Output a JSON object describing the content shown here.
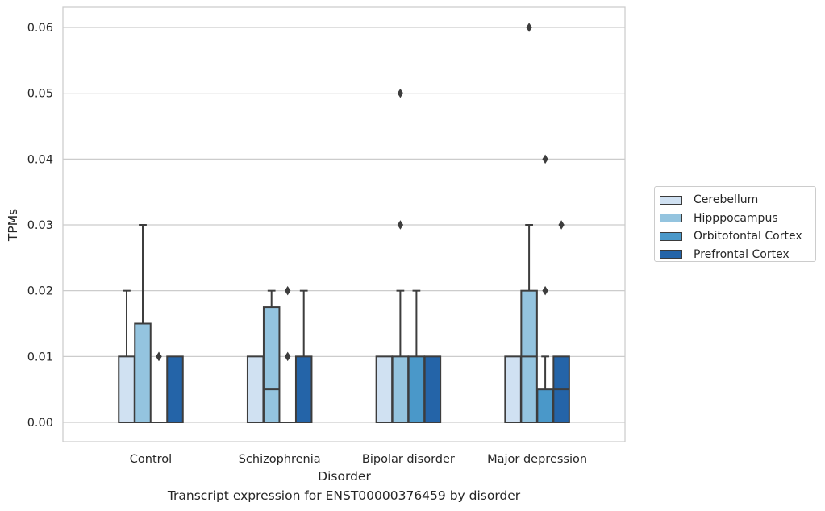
{
  "chart_data": {
    "type": "boxplot",
    "categories": [
      "Control",
      "Schizophrenia",
      "Bipolar disorder",
      "Major depression"
    ],
    "xlabel": "Disorder",
    "ylabel": "TPMs",
    "caption": "Transcript expression for ENST00000376459 by disorder",
    "ylim": [
      -0.003,
      0.063
    ],
    "yticks": [
      0.0,
      0.01,
      0.02,
      0.03,
      0.04,
      0.05,
      0.06
    ],
    "ytick_labels": [
      "0.00",
      "0.01",
      "0.02",
      "0.03",
      "0.04",
      "0.05",
      "0.06"
    ],
    "grid": "horizontal",
    "legend_position": "outside-right",
    "series": [
      {
        "name": "Cerebellum",
        "color": "#d0e1f2",
        "boxes": [
          {
            "q1": 0.0,
            "median": 0.0,
            "q3": 0.01,
            "whisker_low": 0.0,
            "whisker_high": 0.02,
            "outliers": []
          },
          {
            "q1": 0.0,
            "median": 0.0,
            "q3": 0.01,
            "whisker_low": 0.0,
            "whisker_high": 0.01,
            "outliers": []
          },
          {
            "q1": 0.0,
            "median": 0.0,
            "q3": 0.01,
            "whisker_low": 0.0,
            "whisker_high": 0.01,
            "outliers": []
          },
          {
            "q1": 0.0,
            "median": 0.0,
            "q3": 0.01,
            "whisker_low": 0.0,
            "whisker_high": 0.01,
            "outliers": []
          }
        ]
      },
      {
        "name": "Hipppocampus",
        "color": "#94c4df",
        "boxes": [
          {
            "q1": 0.0,
            "median": 0.0,
            "q3": 0.015,
            "whisker_low": 0.0,
            "whisker_high": 0.03,
            "outliers": []
          },
          {
            "q1": 0.0,
            "median": 0.005,
            "q3": 0.0175,
            "whisker_low": 0.0,
            "whisker_high": 0.02,
            "outliers": []
          },
          {
            "q1": 0.0,
            "median": 0.0,
            "q3": 0.01,
            "whisker_low": 0.0,
            "whisker_high": 0.02,
            "outliers": [
              0.03,
              0.05
            ]
          },
          {
            "q1": 0.0,
            "median": 0.01,
            "q3": 0.02,
            "whisker_low": 0.0,
            "whisker_high": 0.03,
            "outliers": [
              0.06
            ]
          }
        ]
      },
      {
        "name": "Orbitofontal Cortex",
        "color": "#4a98c9",
        "boxes": [
          {
            "q1": 0.0,
            "median": 0.0,
            "q3": 0.0,
            "whisker_low": 0.0,
            "whisker_high": 0.0,
            "outliers": [
              0.01,
              0.01
            ]
          },
          {
            "q1": 0.0,
            "median": 0.0,
            "q3": 0.0,
            "whisker_low": 0.0,
            "whisker_high": 0.0,
            "outliers": [
              0.01,
              0.02
            ]
          },
          {
            "q1": 0.0,
            "median": 0.0,
            "q3": 0.01,
            "whisker_low": 0.0,
            "whisker_high": 0.02,
            "outliers": []
          },
          {
            "q1": 0.0,
            "median": 0.0,
            "q3": 0.005,
            "whisker_low": 0.0,
            "whisker_high": 0.01,
            "outliers": [
              0.02,
              0.04
            ]
          }
        ]
      },
      {
        "name": "Prefrontal Cortex",
        "color": "#2464a8",
        "boxes": [
          {
            "q1": 0.0,
            "median": 0.0,
            "q3": 0.01,
            "whisker_low": 0.0,
            "whisker_high": 0.01,
            "outliers": []
          },
          {
            "q1": 0.0,
            "median": 0.0,
            "q3": 0.01,
            "whisker_low": 0.0,
            "whisker_high": 0.02,
            "outliers": []
          },
          {
            "q1": 0.0,
            "median": 0.0,
            "q3": 0.01,
            "whisker_low": 0.0,
            "whisker_high": 0.01,
            "outliers": []
          },
          {
            "q1": 0.0,
            "median": 0.005,
            "q3": 0.01,
            "whisker_low": 0.0,
            "whisker_high": 0.01,
            "outliers": [
              0.03
            ]
          }
        ]
      }
    ]
  }
}
